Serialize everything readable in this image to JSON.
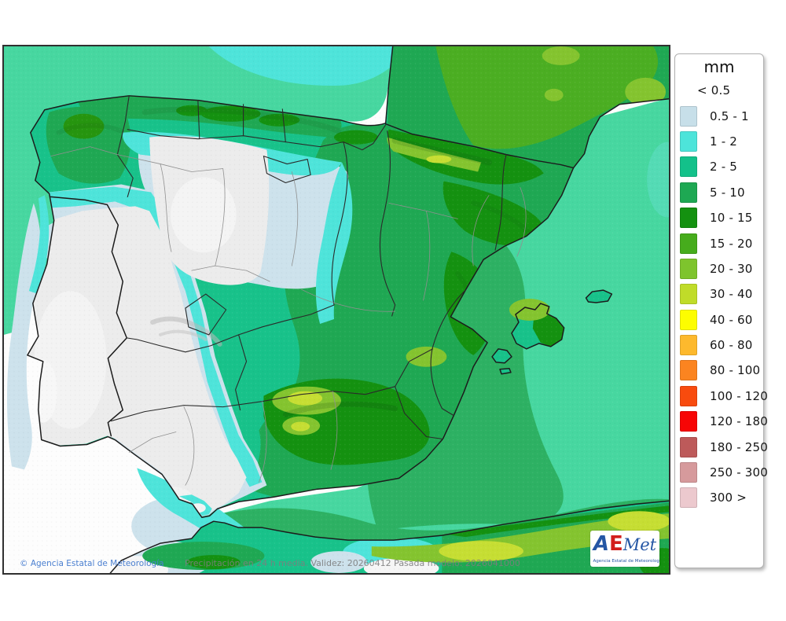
{
  "map": {
    "copyright": "© Agencia Estatal de Meteorología",
    "caption": "Precipitación en 24 h media. Validez: 20260412 Pasada modelo: 2026041000"
  },
  "legend": {
    "title": "mm",
    "entries": [
      {
        "label": "< 0.5",
        "color": null
      },
      {
        "label": "0.5 - 1",
        "color": "#c7dfe9"
      },
      {
        "label": "1 - 2",
        "color": "#4de4da"
      },
      {
        "label": "2 - 5",
        "color": "#13c18a"
      },
      {
        "label": "5 - 10",
        "color": "#1ea853"
      },
      {
        "label": "10 - 15",
        "color": "#149110"
      },
      {
        "label": "15 - 20",
        "color": "#46ac1c"
      },
      {
        "label": "20 - 30",
        "color": "#7ec42d"
      },
      {
        "label": "30 - 40",
        "color": "#c0dc29"
      },
      {
        "label": "40 - 60",
        "color": "#fdfd00"
      },
      {
        "label": "60 - 80",
        "color": "#fdb92d"
      },
      {
        "label": "80 - 100",
        "color": "#fb8420"
      },
      {
        "label": "100 - 120",
        "color": "#f84b0e"
      },
      {
        "label": "120 - 180",
        "color": "#f70505"
      },
      {
        "label": "180 - 250",
        "color": "#bd5a5a"
      },
      {
        "label": "250 - 300",
        "color": "#d69a9c"
      },
      {
        "label": "300 >",
        "color": "#ecc9ce"
      }
    ]
  },
  "logo": {
    "a": "A",
    "e": "E",
    "met": "Met",
    "subtitle": "Agencia Estatal de Meteorología"
  },
  "palette": {
    "white": "#f6f6f6",
    "sea_base": "#fdfdfd",
    "teal_sea": "#47d7a0",
    "green_band_sea": "#2db163",
    "lightblue": "#cde2ec",
    "cyan": "#4ee4da",
    "land_2_5": "#18c28a",
    "green_5_10": "#1fa853",
    "green_10_15": "#149110",
    "green_15_20": "#4bae22",
    "yellowgreen_20_30": "#84c42f",
    "yellowgreen_30_40": "#c6de33",
    "gray_relief": "#ececec",
    "gray_relief_light": "#f4f4f4",
    "border_dark": "#1c1c1c",
    "border_gray": "#909090"
  }
}
